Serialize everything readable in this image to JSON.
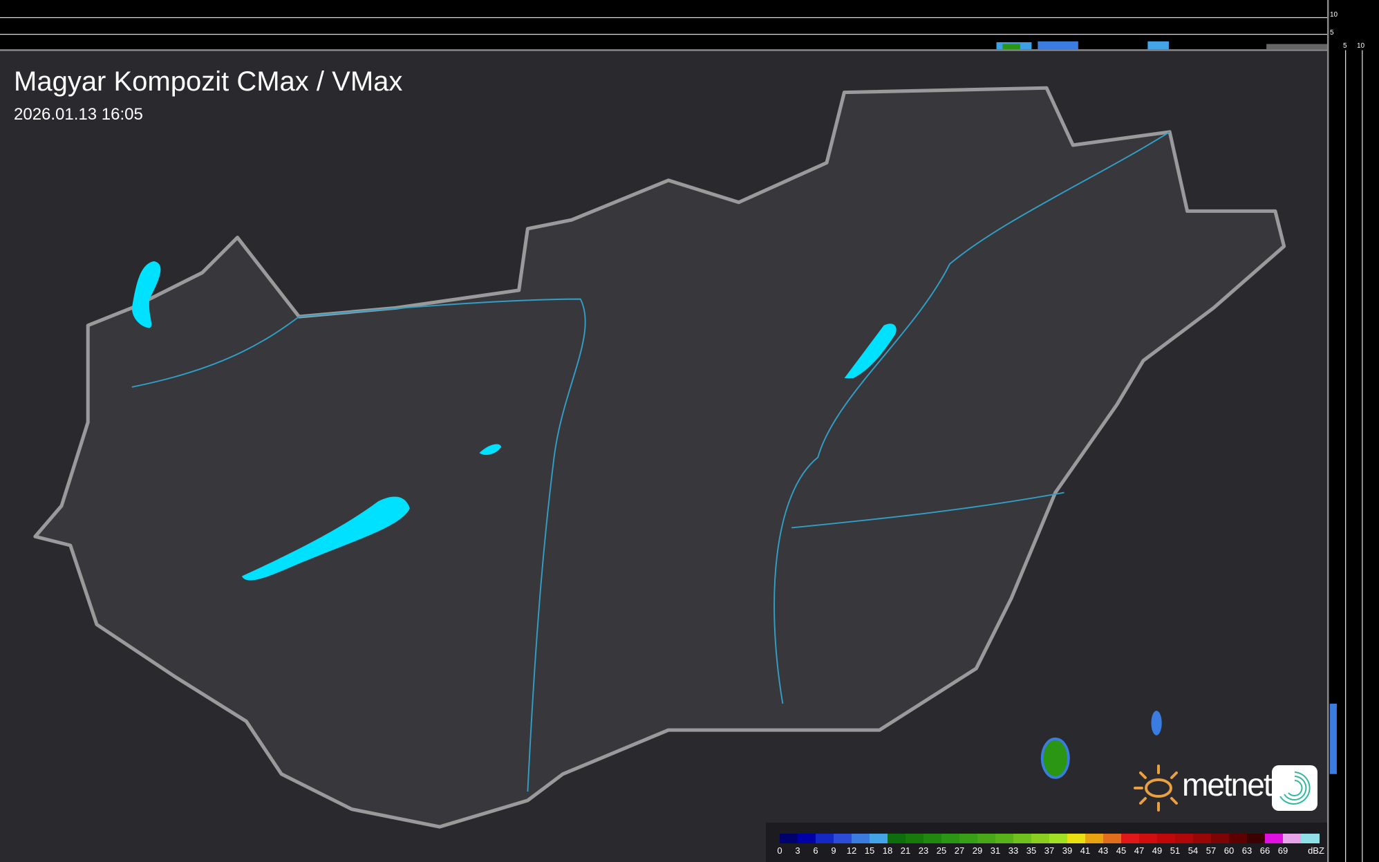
{
  "header": {
    "title": "Magyar Kompozit CMax / VMax",
    "timestamp": "2026.01.13 16:05"
  },
  "profile_axes": {
    "top_ticks": [
      "10",
      "5"
    ],
    "right_ticks": [
      "5",
      "10"
    ]
  },
  "legend": {
    "unit": "dBZ",
    "labels": [
      "0",
      "3",
      "6",
      "9",
      "12",
      "15",
      "18",
      "21",
      "23",
      "25",
      "27",
      "29",
      "31",
      "33",
      "35",
      "37",
      "39",
      "41",
      "43",
      "45",
      "47",
      "49",
      "51",
      "54",
      "57",
      "60",
      "63",
      "66",
      "69"
    ],
    "colors": [
      "#00006e",
      "#0000a8",
      "#1428c4",
      "#2c4cd8",
      "#3a7ce0",
      "#44a4e8",
      "#0e6e0e",
      "#187a0a",
      "#20880e",
      "#2a9614",
      "#38a016",
      "#48a818",
      "#58b21a",
      "#70c01e",
      "#8ace20",
      "#a2e024",
      "#e8e010",
      "#e8a410",
      "#e06e1c",
      "#e01818",
      "#d00e0e",
      "#c00808",
      "#b00808",
      "#980606",
      "#7e0404",
      "#5e0000",
      "#3c0000",
      "#e010e0",
      "#e8a4e8",
      "#90e0e8"
    ]
  },
  "brand": {
    "name": "metnet",
    "sun_color": "#e8a040",
    "app_icon_color": "#30b8a0"
  },
  "colors": {
    "lake": "#00e0ff",
    "river": "#30a0c8",
    "border": "#9a9a9a",
    "country": "#38383c",
    "background": "#2a2a2e"
  }
}
